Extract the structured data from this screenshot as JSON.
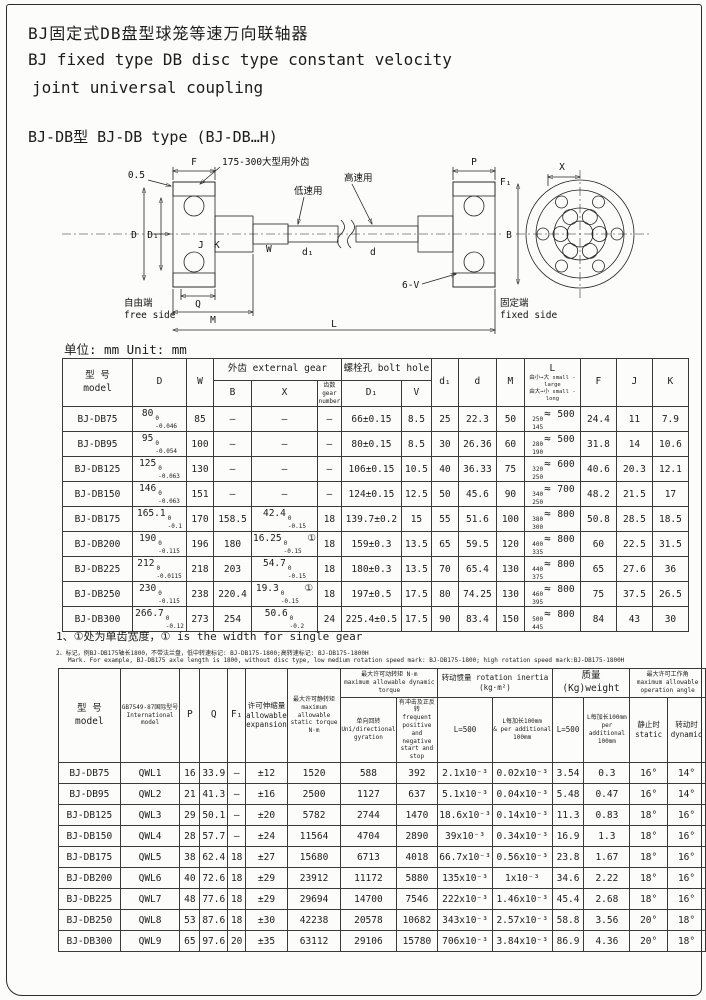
{
  "page": {
    "title_zh": "BJ固定式DB盘型球笼等速万向联轴器",
    "title_en1": "BJ fixed type DB disc type constant velocity",
    "title_en2": "joint universal coupling",
    "subtitle": "BJ-DB型 BJ-DB type (BJ-DB…H)",
    "unit_label": "单位: mm Unit: mm"
  },
  "drawing": {
    "labels": {
      "gap": "0.5",
      "F": "F",
      "gear_note": "175-300大型用外齿",
      "low_speed": "低速用",
      "high_speed": "高速用",
      "D": "D",
      "D1": "D₁",
      "J": "J",
      "K": "K",
      "W": "W",
      "d1": "d₁",
      "d": "d",
      "Q": "Q",
      "M": "M",
      "L": "L",
      "free_zh": "自由端",
      "free_en": "free side",
      "fixed_zh": "固定端",
      "fixed_en": "fixed side",
      "P": "P",
      "F1": "F₁",
      "X": "X",
      "B": "B",
      "bolts": "6-V"
    }
  },
  "table1": {
    "headers": {
      "model": [
        "型 号",
        "model"
      ],
      "D": "D",
      "W": "W",
      "gear": "外齿  external gear",
      "bolt": "螺栓孔 bolt hole",
      "B": "B",
      "X": "X",
      "teeth": [
        "齿数",
        "gear number"
      ],
      "D1": "D₁",
      "V": "V",
      "d1": "d₁",
      "d": "d",
      "M": "M",
      "L": [
        "L",
        "由小→大 small - large",
        "由大→小 small - long"
      ],
      "F": "F",
      "J": "J",
      "K": "K"
    },
    "rows": [
      [
        "BJ-DB75",
        {
          "v": "80",
          "t": "0",
          "b": "-0.046"
        },
        "85",
        "—",
        "—",
        "—",
        "66±0.15",
        "8.5",
        "25",
        "22.3",
        "50",
        {
          "f": "250",
          "g": "145",
          "m": "500"
        },
        "24.4",
        "11",
        "7.9"
      ],
      [
        "BJ-DB95",
        {
          "v": "95",
          "t": "0",
          "b": "-0.054"
        },
        "100",
        "—",
        "—",
        "—",
        "80±0.15",
        "8.5",
        "30",
        "26.36",
        "60",
        {
          "f": "280",
          "g": "190",
          "m": "500"
        },
        "31.8",
        "14",
        "10.6"
      ],
      [
        "BJ-DB125",
        {
          "v": "125",
          "t": "0",
          "b": "-0.063"
        },
        "130",
        "—",
        "—",
        "—",
        "106±0.15",
        "10.5",
        "40",
        "36.33",
        "75",
        {
          "f": "320",
          "g": "250",
          "m": "600"
        },
        "40.6",
        "20.3",
        "12.1"
      ],
      [
        "BJ-DB150",
        {
          "v": "146",
          "t": "0",
          "b": "-0.063"
        },
        "151",
        "—",
        "—",
        "—",
        "124±0.15",
        "12.5",
        "50",
        "45.6",
        "90",
        {
          "f": "340",
          "g": "250",
          "m": "700"
        },
        "48.2",
        "21.5",
        "17"
      ],
      [
        "BJ-DB175",
        {
          "v": "165.1",
          "t": "0",
          "b": "-0.1"
        },
        "170",
        "158.5",
        {
          "v": "42.4",
          "t": "0",
          "b": "-0.15"
        },
        "18",
        "139.7±0.2",
        "15",
        "55",
        "51.6",
        "100",
        {
          "f": "380",
          "g": "300",
          "m": "800"
        },
        "50.8",
        "28.5",
        "18.5"
      ],
      [
        "BJ-DB200",
        {
          "v": "190",
          "t": "0",
          "b": "-0.115"
        },
        "196",
        "180",
        {
          "v": "16.25",
          "t": "0",
          "b": "-0.15",
          "s": "①"
        },
        "18",
        "159±0.3",
        "13.5",
        "65",
        "59.5",
        "120",
        {
          "f": "400",
          "g": "335",
          "m": "800"
        },
        "60",
        "22.5",
        "31.5"
      ],
      [
        "BJ-DB225",
        {
          "v": "212",
          "t": "0",
          "b": "-0.0115"
        },
        "218",
        "203",
        {
          "v": "54.7",
          "t": "0",
          "b": "-0.15"
        },
        "18",
        "180±0.3",
        "13.5",
        "70",
        "65.4",
        "130",
        {
          "f": "440",
          "g": "375",
          "m": "800"
        },
        "65",
        "27.6",
        "36"
      ],
      [
        "BJ-DB250",
        {
          "v": "230",
          "t": "0",
          "b": "-0.115"
        },
        "238",
        "220.4",
        {
          "v": "19.3",
          "t": "0",
          "b": "-0.15",
          "s": "①"
        },
        "18",
        "197±0.5",
        "17.5",
        "80",
        "74.25",
        "130",
        {
          "f": "460",
          "g": "395",
          "m": "800"
        },
        "75",
        "37.5",
        "26.5"
      ],
      [
        "BJ-DB300",
        {
          "v": "266.7",
          "t": "0",
          "b": "-0.12"
        },
        "273",
        "254",
        {
          "v": "50.6",
          "t": "0",
          "b": "-0.2"
        },
        "24",
        "225.4±0.5",
        "17.5",
        "90",
        "83.4",
        "150",
        {
          "f": "500",
          "g": "445",
          "m": "800"
        },
        "84",
        "43",
        "30"
      ]
    ]
  },
  "notes": {
    "note1": "1、①处为单齿宽度，① is the width for single gear",
    "note2_zh": "2、标记，例BJ-DB175轴长1800，不带法兰盘，低中转速标记: BJ-DB175-1800;高转速标记: BJ-DB175-1800H",
    "note2_en": "Mark. For example, BJ-DB175 axle length is 1800, without disc type, low medium rotation speed mark: BJ-DB175-1800; high rotation speed mark:BJ-DB175-1800H"
  },
  "table2": {
    "headers": {
      "model": [
        "型 号",
        "model"
      ],
      "intl": [
        "GB7549-87国际型号",
        "International model"
      ],
      "P": "P",
      "Q": "Q",
      "F1": "F₁",
      "exp": [
        "许可伸缩量",
        "allowable",
        "expansion"
      ],
      "stat": [
        "最大许可静转矩",
        "maximum allowable",
        "static torque",
        "N·m"
      ],
      "dyn": [
        "最大许可动转矩 N·m",
        "maximum allowable dynamic torque"
      ],
      "dyn_uni": [
        "单向回转",
        "Uni/directional",
        "gyration"
      ],
      "dyn_rev": [
        "有冲击及正反转",
        "frequent positive",
        "and negative",
        "start and stop"
      ],
      "inertia": [
        "转动惯量 rotation inertia",
        "(kg·m²)"
      ],
      "L500a": "L=500",
      "per100a": [
        "L每加长100mm",
        "& per additional 100mm"
      ],
      "L500b": "L=500",
      "per100b": [
        "L每加长100mm",
        "per additional",
        "100mm"
      ],
      "weight": [
        "质量 (Kg)weight"
      ],
      "angle": [
        "最大许可工作角",
        "maximum allowable",
        "operation angle"
      ],
      "angS": [
        "静止时",
        "static"
      ],
      "angD": [
        "转动时",
        "dynamic"
      ]
    },
    "rows": [
      [
        "BJ-DB75",
        "QWL1",
        "16",
        "33.9",
        "—",
        "±12",
        "1520",
        "588",
        "392",
        "2.1x10⁻³",
        "0.02x10⁻³",
        "3.54",
        "0.3",
        "16°",
        "14°"
      ],
      [
        "BJ-DB95",
        "QWL2",
        "21",
        "41.3",
        "—",
        "±16",
        "2500",
        "1127",
        "637",
        "5.1x10⁻³",
        "0.04x10⁻³",
        "5.48",
        "0.47",
        "16°",
        "14°"
      ],
      [
        "BJ-DB125",
        "QWL3",
        "29",
        "50.1",
        "—",
        "±20",
        "5782",
        "2744",
        "1470",
        "18.6x10⁻³",
        "0.14x10⁻³",
        "11.3",
        "0.83",
        "18°",
        "16°"
      ],
      [
        "BJ-DB150",
        "QWL4",
        "28",
        "57.7",
        "—",
        "±24",
        "11564",
        "4704",
        "2890",
        "39x10⁻³",
        "0.34x10⁻³",
        "16.9",
        "1.3",
        "18°",
        "16°"
      ],
      [
        "BJ-DB175",
        "QWL5",
        "38",
        "62.4",
        "18",
        "±27",
        "15680",
        "6713",
        "4018",
        "66.7x10⁻³",
        "0.56x10⁻³",
        "23.8",
        "1.67",
        "18°",
        "16°"
      ],
      [
        "BJ-DB200",
        "QWL6",
        "40",
        "72.6",
        "18",
        "±29",
        "23912",
        "11172",
        "5880",
        "135x10⁻³",
        "1x10⁻³",
        "34.6",
        "2.22",
        "18°",
        "16°"
      ],
      [
        "BJ-DB225",
        "QWL7",
        "48",
        "77.6",
        "18",
        "±29",
        "29694",
        "14700",
        "7546",
        "222x10⁻³",
        "1.46x10⁻³",
        "45.4",
        "2.68",
        "18°",
        "16°"
      ],
      [
        "BJ-DB250",
        "QWL8",
        "53",
        "87.6",
        "18",
        "±30",
        "42238",
        "20578",
        "10682",
        "343x10⁻³",
        "2.57x10⁻³",
        "58.8",
        "3.56",
        "20°",
        "18°"
      ],
      [
        "BJ-DB300",
        "QWL9",
        "65",
        "97.6",
        "20",
        "±35",
        "63112",
        "29106",
        "15780",
        "706x10⁻³",
        "3.84x10⁻³",
        "86.9",
        "4.36",
        "20°",
        "18°"
      ]
    ]
  }
}
